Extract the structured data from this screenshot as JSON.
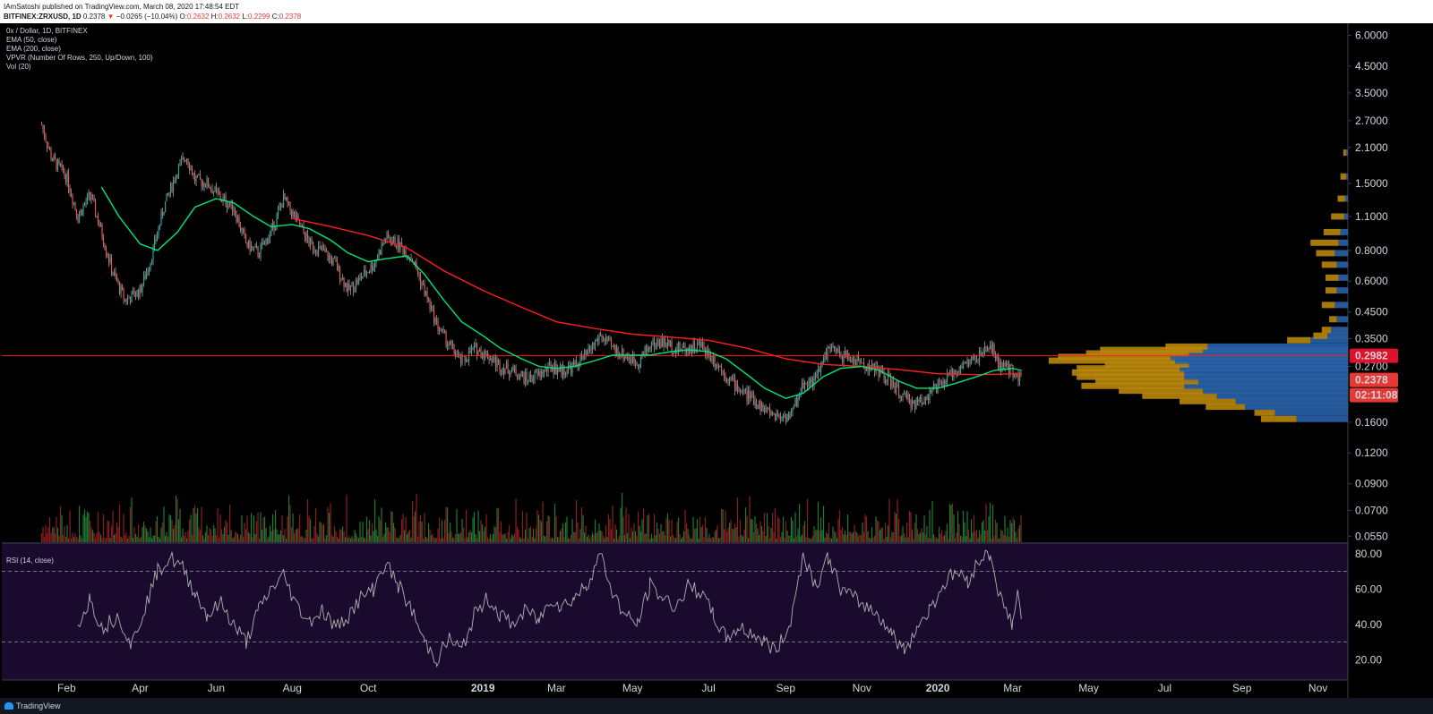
{
  "header": {
    "publisher": "IAmSatoshi published on TradingView.com, March 08, 2020 17:48:54 EDT",
    "symbol": "BITFINEX:ZRXUSD, 1D",
    "last": "0.2378",
    "change_arrow": "▼",
    "change": "−0.0265 (−10.04%)",
    "o_label": "O:",
    "o": "0.2632",
    "h_label": "H:",
    "h": "0.2632",
    "l_label": "L:",
    "l": "0.2299",
    "c_label": "C:",
    "c": "0.2378"
  },
  "legend": {
    "title": "0x / Dollar, 1D, BITFINEX",
    "ema50": "EMA (50, close)",
    "ema200": "EMA (200, close)",
    "vpvr": "VPVR (Number Of Rows, 250, Up/Down, 100)",
    "vol": "Vol (20)"
  },
  "rsi_label": "RSI (14, close)",
  "footer": {
    "brand": "TradingView"
  },
  "colors": {
    "up": "#26a69a",
    "down": "#ef5350",
    "ema50": "#00e676",
    "ema200": "#ff1e1e",
    "vpvr_up": "#2962a8",
    "vpvr_down": "#b8860b",
    "rsi_bg": "#1a0b2e",
    "rsi_line": "#b0b0b0"
  },
  "chart_data": {
    "type": "line",
    "price_axis": {
      "scale": "log",
      "ticks": [
        "6.0000",
        "4.5000",
        "3.5000",
        "2.7000",
        "2.1000",
        "1.5000",
        "1.1000",
        "0.8000",
        "0.6000",
        "0.4500",
        "0.3500",
        "0.2700",
        "0.1600",
        "0.1200",
        "0.0900",
        "0.0700",
        "0.0550"
      ]
    },
    "x_ticks": [
      "Feb",
      "Apr",
      "Jun",
      "Aug",
      "Oct",
      "2019",
      "Mar",
      "May",
      "Jul",
      "Sep",
      "Nov",
      "2020",
      "Mar",
      "May",
      "Jul",
      "Sep",
      "Nov"
    ],
    "price_labels": {
      "horizontal_line": "0.2982",
      "last": "0.2378",
      "countdown": "02:11:08"
    },
    "price_series": [
      [
        "2018-01-12",
        2.6
      ],
      [
        "2018-01-20",
        1.9
      ],
      [
        "2018-02-01",
        1.6
      ],
      [
        "2018-02-10",
        1.1
      ],
      [
        "2018-02-20",
        1.35
      ],
      [
        "2018-03-01",
        0.95
      ],
      [
        "2018-03-10",
        0.65
      ],
      [
        "2018-03-20",
        0.5
      ],
      [
        "2018-04-01",
        0.55
      ],
      [
        "2018-04-10",
        0.75
      ],
      [
        "2018-04-20",
        1.2
      ],
      [
        "2018-05-01",
        1.7
      ],
      [
        "2018-05-08",
        1.95
      ],
      [
        "2018-05-15",
        1.55
      ],
      [
        "2018-05-25",
        1.5
      ],
      [
        "2018-06-05",
        1.3
      ],
      [
        "2018-06-15",
        1.2
      ],
      [
        "2018-06-25",
        0.85
      ],
      [
        "2018-07-05",
        0.78
      ],
      [
        "2018-07-15",
        0.95
      ],
      [
        "2018-07-25",
        1.3
      ],
      [
        "2018-08-05",
        1.05
      ],
      [
        "2018-08-15",
        0.85
      ],
      [
        "2018-08-25",
        0.8
      ],
      [
        "2018-09-05",
        0.7
      ],
      [
        "2018-09-15",
        0.55
      ],
      [
        "2018-09-25",
        0.62
      ],
      [
        "2018-10-05",
        0.7
      ],
      [
        "2018-10-15",
        0.9
      ],
      [
        "2018-10-25",
        0.85
      ],
      [
        "2018-11-05",
        0.75
      ],
      [
        "2018-11-15",
        0.55
      ],
      [
        "2018-11-25",
        0.4
      ],
      [
        "2018-12-05",
        0.33
      ],
      [
        "2018-12-15",
        0.28
      ],
      [
        "2018-12-25",
        0.32
      ],
      [
        "2019-01-05",
        0.3
      ],
      [
        "2019-01-15",
        0.27
      ],
      [
        "2019-01-25",
        0.26
      ],
      [
        "2019-02-05",
        0.24
      ],
      [
        "2019-02-15",
        0.25
      ],
      [
        "2019-02-25",
        0.27
      ],
      [
        "2019-03-05",
        0.26
      ],
      [
        "2019-03-15",
        0.27
      ],
      [
        "2019-03-25",
        0.3
      ],
      [
        "2019-04-05",
        0.36
      ],
      [
        "2019-04-15",
        0.32
      ],
      [
        "2019-04-25",
        0.3
      ],
      [
        "2019-05-05",
        0.28
      ],
      [
        "2019-05-15",
        0.33
      ],
      [
        "2019-05-25",
        0.34
      ],
      [
        "2019-06-05",
        0.32
      ],
      [
        "2019-06-15",
        0.32
      ],
      [
        "2019-06-25",
        0.33
      ],
      [
        "2019-07-05",
        0.29
      ],
      [
        "2019-07-15",
        0.25
      ],
      [
        "2019-07-25",
        0.22
      ],
      [
        "2019-08-05",
        0.2
      ],
      [
        "2019-08-15",
        0.18
      ],
      [
        "2019-08-25",
        0.17
      ],
      [
        "2019-09-05",
        0.17
      ],
      [
        "2019-09-15",
        0.23
      ],
      [
        "2019-09-25",
        0.24
      ],
      [
        "2019-10-05",
        0.32
      ],
      [
        "2019-10-15",
        0.3
      ],
      [
        "2019-10-25",
        0.29
      ],
      [
        "2019-11-05",
        0.27
      ],
      [
        "2019-11-15",
        0.26
      ],
      [
        "2019-11-25",
        0.23
      ],
      [
        "2019-12-05",
        0.2
      ],
      [
        "2019-12-15",
        0.19
      ],
      [
        "2019-12-25",
        0.21
      ],
      [
        "2020-01-05",
        0.23
      ],
      [
        "2020-01-15",
        0.26
      ],
      [
        "2020-01-25",
        0.28
      ],
      [
        "2020-02-05",
        0.3
      ],
      [
        "2020-02-12",
        0.33
      ],
      [
        "2020-02-20",
        0.27
      ],
      [
        "2020-03-01",
        0.26
      ],
      [
        "2020-03-08",
        0.2378
      ]
    ],
    "ema50_series": [
      [
        "2018-03-01",
        1.45
      ],
      [
        "2018-03-15",
        1.1
      ],
      [
        "2018-04-01",
        0.85
      ],
      [
        "2018-04-15",
        0.8
      ],
      [
        "2018-05-01",
        0.95
      ],
      [
        "2018-05-15",
        1.2
      ],
      [
        "2018-06-01",
        1.3
      ],
      [
        "2018-06-15",
        1.25
      ],
      [
        "2018-07-01",
        1.1
      ],
      [
        "2018-07-15",
        1.0
      ],
      [
        "2018-08-01",
        1.02
      ],
      [
        "2018-08-15",
        0.98
      ],
      [
        "2018-09-01",
        0.88
      ],
      [
        "2018-09-15",
        0.78
      ],
      [
        "2018-10-01",
        0.72
      ],
      [
        "2018-10-15",
        0.74
      ],
      [
        "2018-11-01",
        0.76
      ],
      [
        "2018-11-15",
        0.64
      ],
      [
        "2018-12-01",
        0.5
      ],
      [
        "2018-12-15",
        0.41
      ],
      [
        "2019-01-01",
        0.36
      ],
      [
        "2019-01-15",
        0.32
      ],
      [
        "2019-02-01",
        0.29
      ],
      [
        "2019-02-15",
        0.27
      ],
      [
        "2019-03-01",
        0.265
      ],
      [
        "2019-03-15",
        0.27
      ],
      [
        "2019-04-01",
        0.285
      ],
      [
        "2019-04-15",
        0.3
      ],
      [
        "2019-05-01",
        0.3
      ],
      [
        "2019-05-15",
        0.3
      ],
      [
        "2019-06-01",
        0.31
      ],
      [
        "2019-06-15",
        0.315
      ],
      [
        "2019-07-01",
        0.31
      ],
      [
        "2019-07-15",
        0.29
      ],
      [
        "2019-08-01",
        0.25
      ],
      [
        "2019-08-15",
        0.22
      ],
      [
        "2019-09-01",
        0.2
      ],
      [
        "2019-09-15",
        0.21
      ],
      [
        "2019-10-01",
        0.245
      ],
      [
        "2019-10-15",
        0.265
      ],
      [
        "2019-11-01",
        0.27
      ],
      [
        "2019-11-15",
        0.26
      ],
      [
        "2019-12-01",
        0.235
      ],
      [
        "2019-12-15",
        0.22
      ],
      [
        "2020-01-01",
        0.22
      ],
      [
        "2020-01-15",
        0.23
      ],
      [
        "2020-02-01",
        0.245
      ],
      [
        "2020-02-15",
        0.26
      ],
      [
        "2020-03-01",
        0.265
      ],
      [
        "2020-03-08",
        0.26
      ]
    ],
    "ema200_series": [
      [
        "2018-08-01",
        1.08
      ],
      [
        "2018-09-01",
        1.0
      ],
      [
        "2018-10-01",
        0.92
      ],
      [
        "2018-11-01",
        0.82
      ],
      [
        "2018-12-01",
        0.66
      ],
      [
        "2019-01-01",
        0.55
      ],
      [
        "2019-02-01",
        0.47
      ],
      [
        "2019-03-01",
        0.41
      ],
      [
        "2019-04-01",
        0.385
      ],
      [
        "2019-05-01",
        0.365
      ],
      [
        "2019-06-01",
        0.355
      ],
      [
        "2019-07-01",
        0.345
      ],
      [
        "2019-08-01",
        0.32
      ],
      [
        "2019-09-01",
        0.29
      ],
      [
        "2019-10-01",
        0.275
      ],
      [
        "2019-11-01",
        0.27
      ],
      [
        "2019-12-01",
        0.262
      ],
      [
        "2020-01-01",
        0.252
      ],
      [
        "2020-02-01",
        0.25
      ],
      [
        "2020-03-08",
        0.252
      ]
    ],
    "rsi": {
      "ticks": [
        "80.00",
        "60.00",
        "40.00",
        "20.00"
      ],
      "bands": [
        70,
        30
      ],
      "series": [
        [
          "2018-02-10",
          40
        ],
        [
          "2018-02-20",
          55
        ],
        [
          "2018-03-01",
          38
        ],
        [
          "2018-03-15",
          45
        ],
        [
          "2018-03-25",
          28
        ],
        [
          "2018-04-05",
          50
        ],
        [
          "2018-04-15",
          70
        ],
        [
          "2018-04-25",
          78
        ],
        [
          "2018-05-05",
          72
        ],
        [
          "2018-05-15",
          58
        ],
        [
          "2018-05-25",
          45
        ],
        [
          "2018-06-05",
          52
        ],
        [
          "2018-06-15",
          40
        ],
        [
          "2018-06-25",
          30
        ],
        [
          "2018-07-05",
          48
        ],
        [
          "2018-07-15",
          60
        ],
        [
          "2018-07-25",
          68
        ],
        [
          "2018-08-05",
          50
        ],
        [
          "2018-08-15",
          42
        ],
        [
          "2018-08-25",
          48
        ],
        [
          "2018-09-05",
          38
        ],
        [
          "2018-09-15",
          45
        ],
        [
          "2018-09-25",
          55
        ],
        [
          "2018-10-05",
          60
        ],
        [
          "2018-10-15",
          75
        ],
        [
          "2018-10-25",
          62
        ],
        [
          "2018-11-05",
          48
        ],
        [
          "2018-11-15",
          30
        ],
        [
          "2018-11-25",
          20
        ],
        [
          "2018-12-05",
          32
        ],
        [
          "2018-12-15",
          25
        ],
        [
          "2018-12-25",
          45
        ],
        [
          "2019-01-05",
          55
        ],
        [
          "2019-01-15",
          45
        ],
        [
          "2019-01-25",
          40
        ],
        [
          "2019-02-05",
          48
        ],
        [
          "2019-02-15",
          42
        ],
        [
          "2019-02-25",
          55
        ],
        [
          "2019-03-05",
          50
        ],
        [
          "2019-03-15",
          55
        ],
        [
          "2019-03-25",
          62
        ],
        [
          "2019-04-05",
          80
        ],
        [
          "2019-04-15",
          58
        ],
        [
          "2019-04-25",
          45
        ],
        [
          "2019-05-05",
          40
        ],
        [
          "2019-05-15",
          62
        ],
        [
          "2019-05-25",
          55
        ],
        [
          "2019-06-05",
          50
        ],
        [
          "2019-06-15",
          62
        ],
        [
          "2019-06-25",
          58
        ],
        [
          "2019-07-05",
          45
        ],
        [
          "2019-07-15",
          32
        ],
        [
          "2019-07-25",
          38
        ],
        [
          "2019-08-05",
          35
        ],
        [
          "2019-08-15",
          30
        ],
        [
          "2019-08-25",
          25
        ],
        [
          "2019-09-05",
          42
        ],
        [
          "2019-09-15",
          80
        ],
        [
          "2019-09-25",
          62
        ],
        [
          "2019-10-05",
          78
        ],
        [
          "2019-10-15",
          60
        ],
        [
          "2019-10-25",
          55
        ],
        [
          "2019-11-05",
          50
        ],
        [
          "2019-11-15",
          45
        ],
        [
          "2019-11-25",
          35
        ],
        [
          "2019-12-05",
          25
        ],
        [
          "2019-12-15",
          38
        ],
        [
          "2019-12-25",
          48
        ],
        [
          "2020-01-05",
          62
        ],
        [
          "2020-01-15",
          70
        ],
        [
          "2020-01-25",
          65
        ],
        [
          "2020-02-05",
          78
        ],
        [
          "2020-02-12",
          80
        ],
        [
          "2020-02-20",
          55
        ],
        [
          "2020-03-01",
          40
        ],
        [
          "2020-03-05",
          58
        ],
        [
          "2020-03-08",
          43
        ]
      ]
    },
    "volume_profile_rows": [
      {
        "price": 0.165,
        "up": 55,
        "down": 38
      },
      {
        "price": 0.175,
        "up": 78,
        "down": 22
      },
      {
        "price": 0.185,
        "up": 110,
        "down": 42
      },
      {
        "price": 0.195,
        "up": 120,
        "down": 60
      },
      {
        "price": 0.205,
        "up": 140,
        "down": 80
      },
      {
        "price": 0.215,
        "up": 155,
        "down": 90
      },
      {
        "price": 0.225,
        "up": 175,
        "down": 110
      },
      {
        "price": 0.235,
        "up": 160,
        "down": 110
      },
      {
        "price": 0.245,
        "up": 175,
        "down": 115
      },
      {
        "price": 0.255,
        "up": 175,
        "down": 120
      },
      {
        "price": 0.265,
        "up": 180,
        "down": 110
      },
      {
        "price": 0.275,
        "up": 170,
        "down": 90
      },
      {
        "price": 0.285,
        "up": 185,
        "down": 135
      },
      {
        "price": 0.295,
        "up": 190,
        "down": 120
      },
      {
        "price": 0.305,
        "up": 170,
        "down": 110
      },
      {
        "price": 0.315,
        "up": 155,
        "down": 110
      },
      {
        "price": 0.325,
        "up": 150,
        "down": 45
      },
      {
        "price": 0.345,
        "up": 40,
        "down": 25
      },
      {
        "price": 0.36,
        "up": 22,
        "down": 15
      },
      {
        "price": 0.38,
        "up": 18,
        "down": 10
      },
      {
        "price": 0.42,
        "up": 12,
        "down": 8
      },
      {
        "price": 0.48,
        "up": 14,
        "down": 14
      },
      {
        "price": 0.55,
        "up": 12,
        "down": 12
      },
      {
        "price": 0.62,
        "up": 10,
        "down": 14
      },
      {
        "price": 0.7,
        "up": 12,
        "down": 16
      },
      {
        "price": 0.78,
        "up": 14,
        "down": 20
      },
      {
        "price": 0.86,
        "up": 10,
        "down": 30
      },
      {
        "price": 0.95,
        "up": 8,
        "down": 18
      },
      {
        "price": 1.1,
        "up": 4,
        "down": 14
      },
      {
        "price": 1.3,
        "up": 3,
        "down": 8
      },
      {
        "price": 1.6,
        "up": 2,
        "down": 6
      },
      {
        "price": 2.0,
        "up": 2,
        "down": 3
      }
    ]
  }
}
